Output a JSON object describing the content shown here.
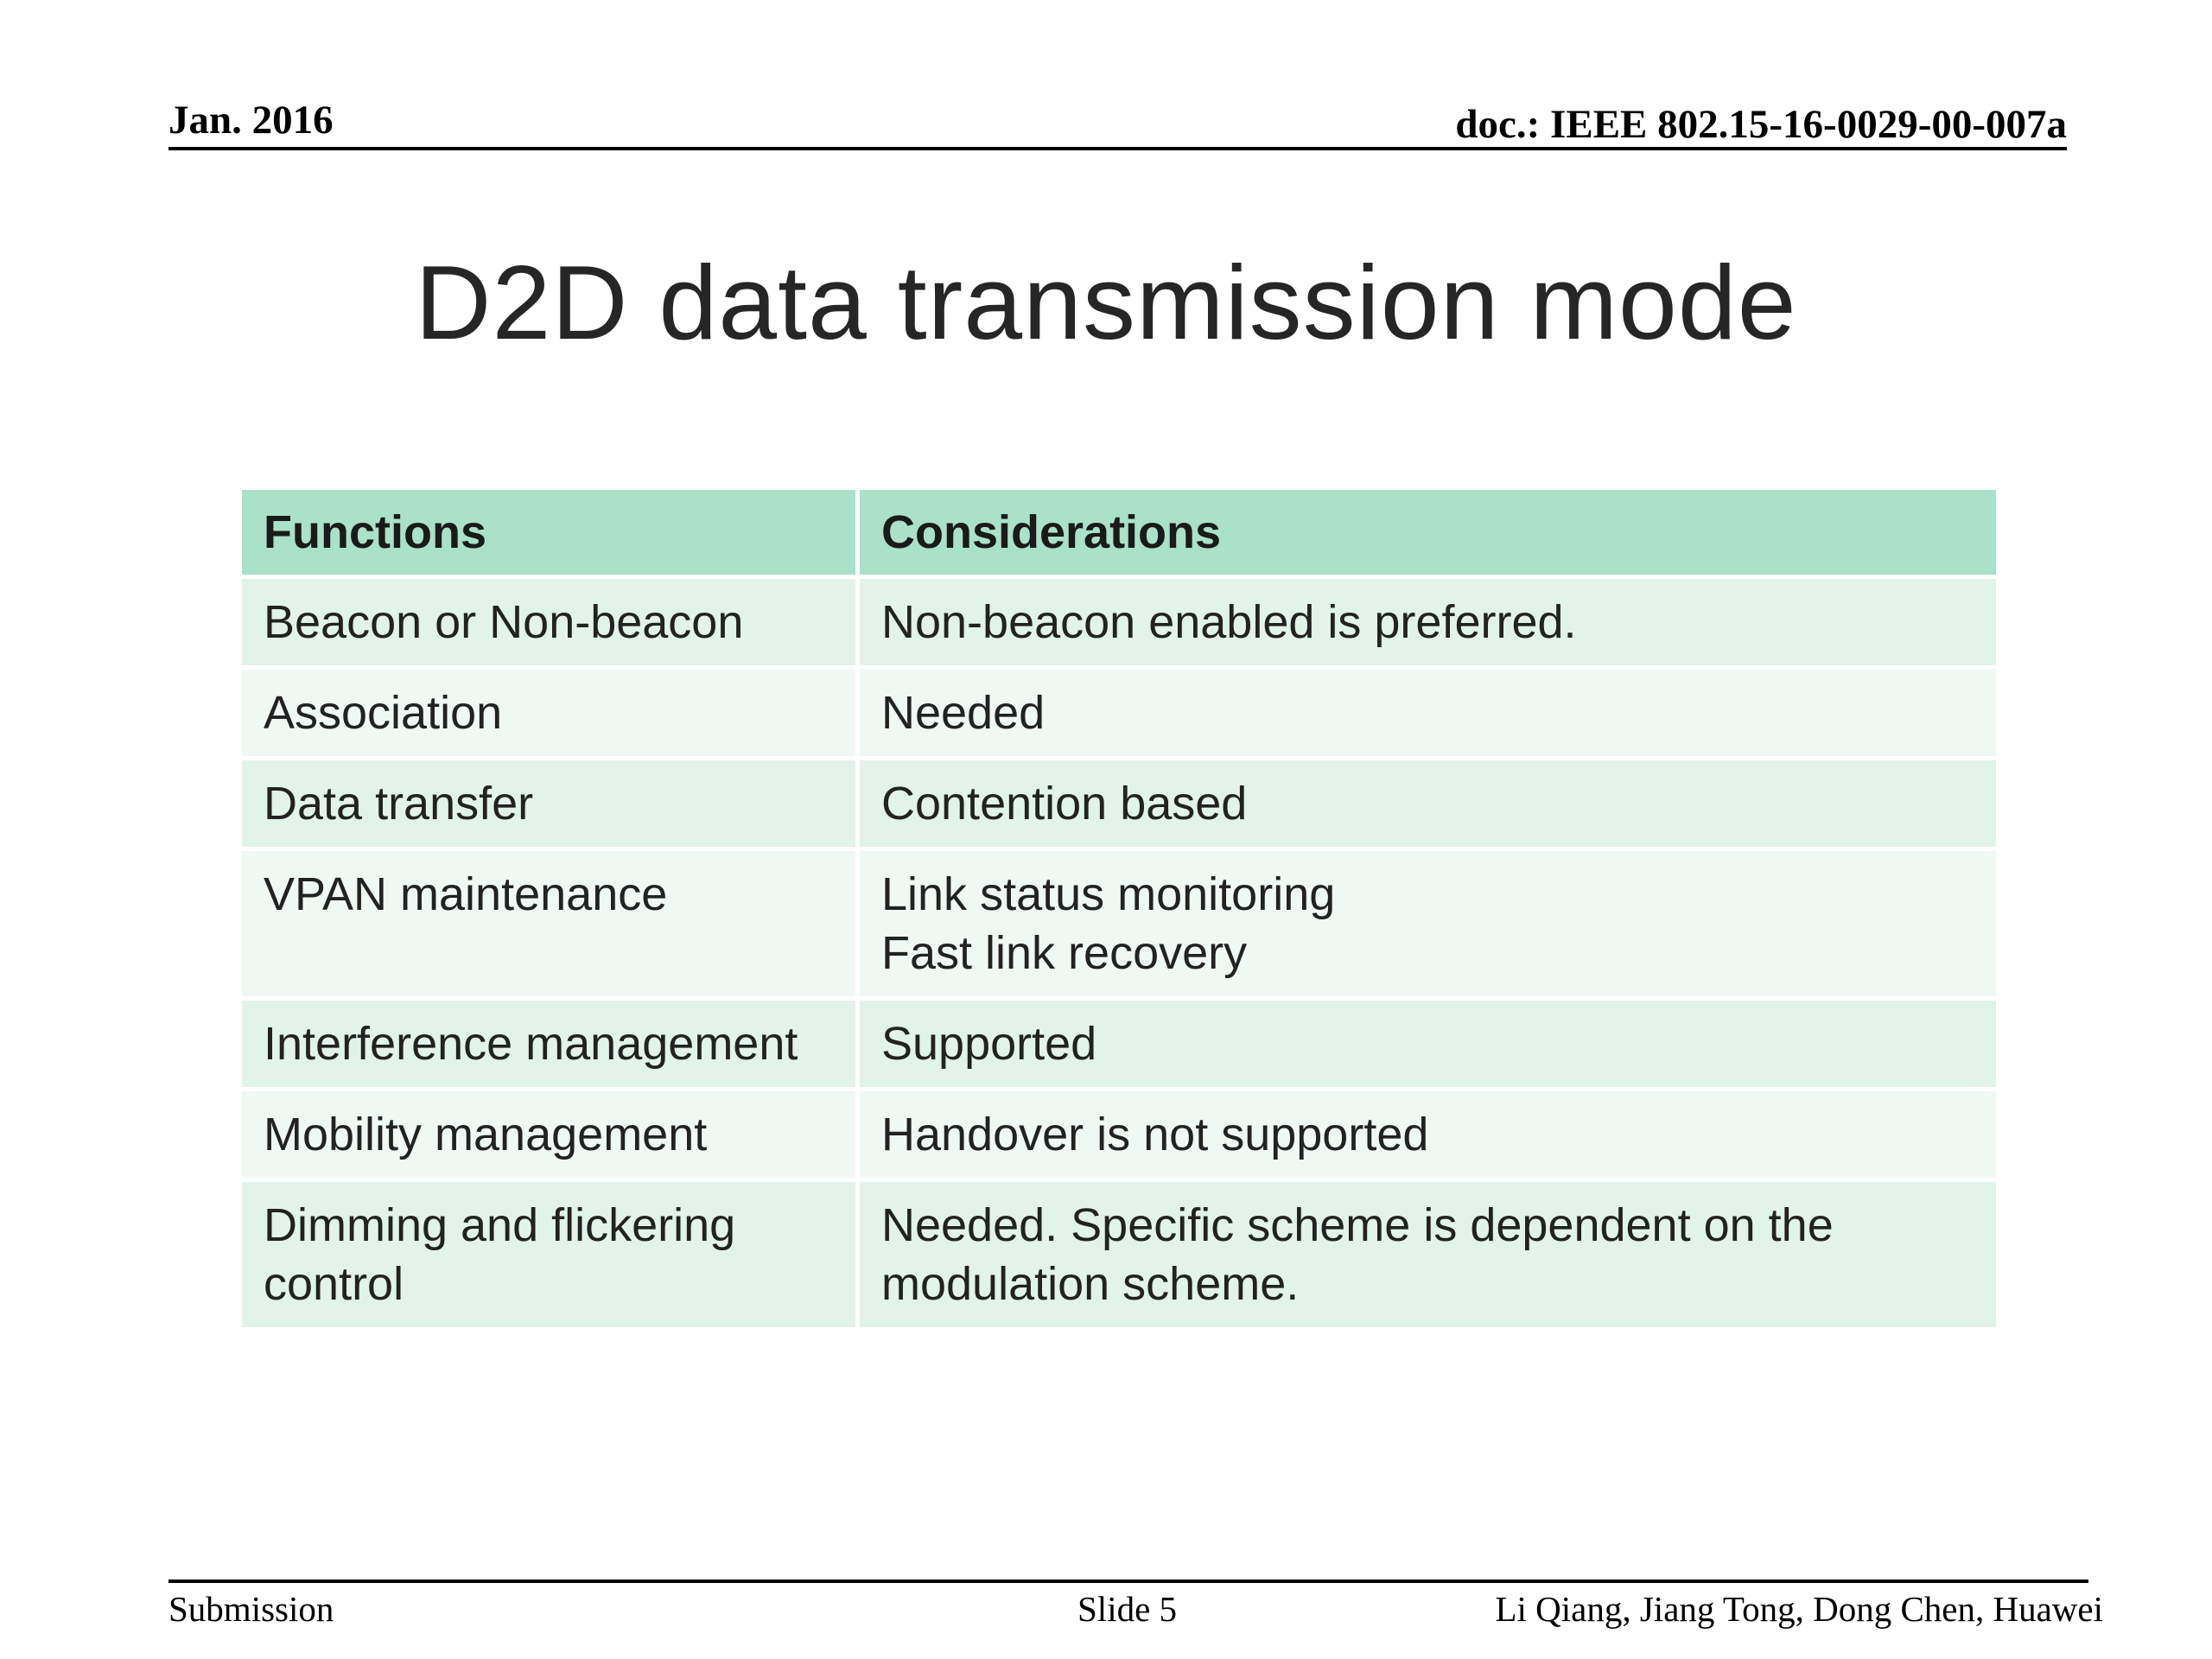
{
  "header": {
    "date": "Jan. 2016",
    "doc_id": "doc.: IEEE 802.15-16-0029-00-007a"
  },
  "title": "D2D data transmission mode",
  "table": {
    "headers": [
      "Functions",
      "Considerations"
    ],
    "rows": [
      {
        "function": [
          "Beacon or Non-beacon"
        ],
        "consideration": [
          "Non-beacon enabled is preferred."
        ]
      },
      {
        "function": [
          "Association"
        ],
        "consideration": [
          "Needed"
        ]
      },
      {
        "function": [
          "Data transfer"
        ],
        "consideration": [
          "Contention based"
        ]
      },
      {
        "function": [
          "VPAN maintenance"
        ],
        "consideration": [
          "Link status monitoring",
          "Fast link recovery"
        ]
      },
      {
        "function": [
          "Interference management"
        ],
        "consideration": [
          "Supported"
        ]
      },
      {
        "function": [
          "Mobility management"
        ],
        "consideration": [
          "Handover is not supported"
        ]
      },
      {
        "function": [
          "Dimming and flickering",
          "control"
        ],
        "consideration": [
          "Needed. Specific scheme is dependent on the",
          "modulation scheme."
        ]
      }
    ]
  },
  "footer": {
    "left": "Submission",
    "center": "Slide 5",
    "right": "Li Qiang, Jiang Tong, Dong Chen, Huawei"
  }
}
